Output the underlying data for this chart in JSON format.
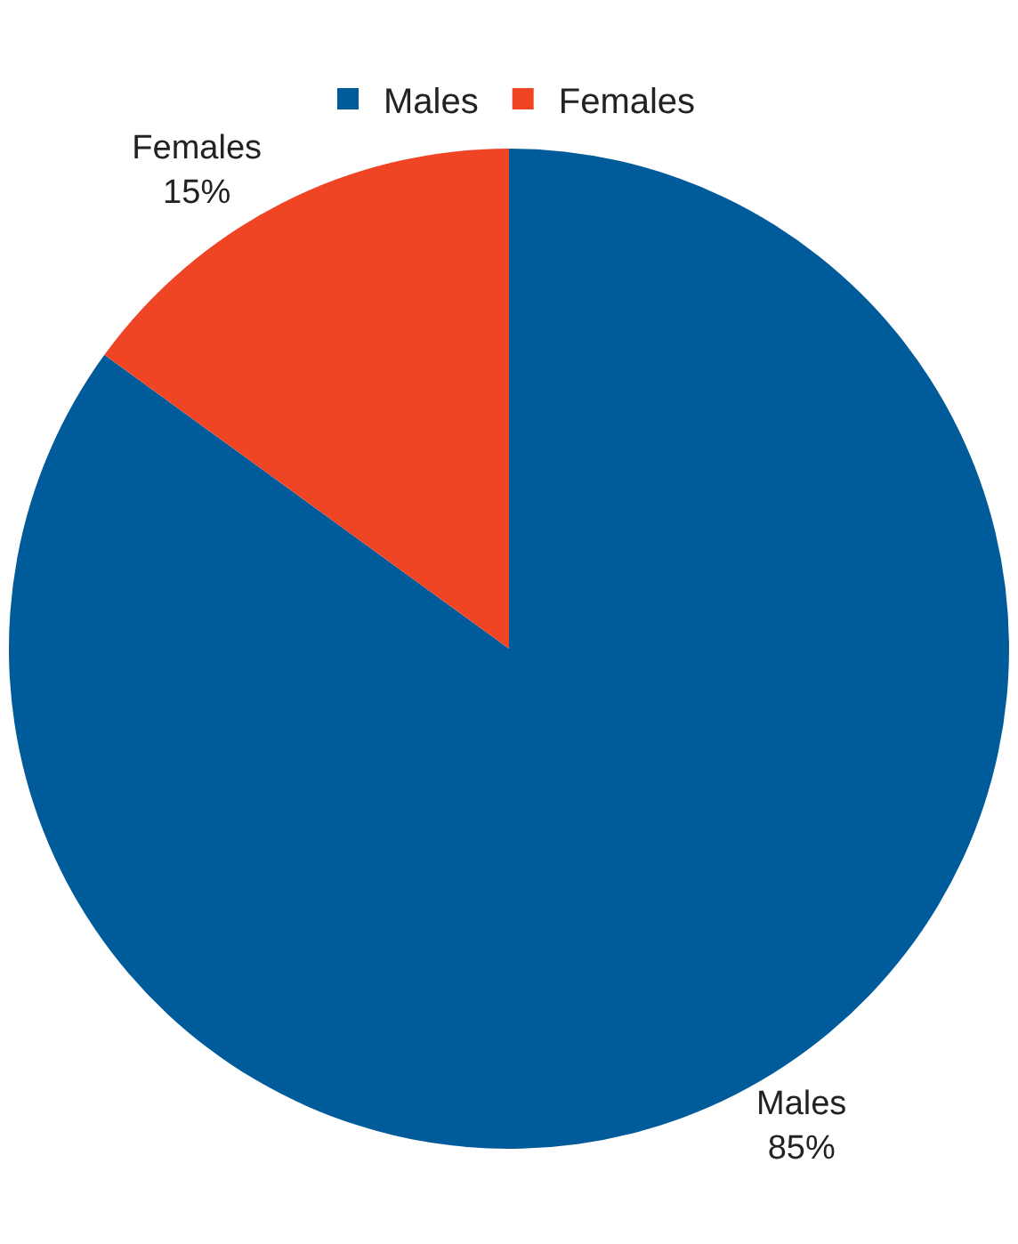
{
  "chart_data": {
    "type": "pie",
    "categories": [
      "Males",
      "Females"
    ],
    "values": [
      85,
      15
    ],
    "colors": [
      "#005b9b",
      "#f04525"
    ],
    "value_labels": [
      "85%",
      "15%"
    ],
    "legend": "top"
  }
}
